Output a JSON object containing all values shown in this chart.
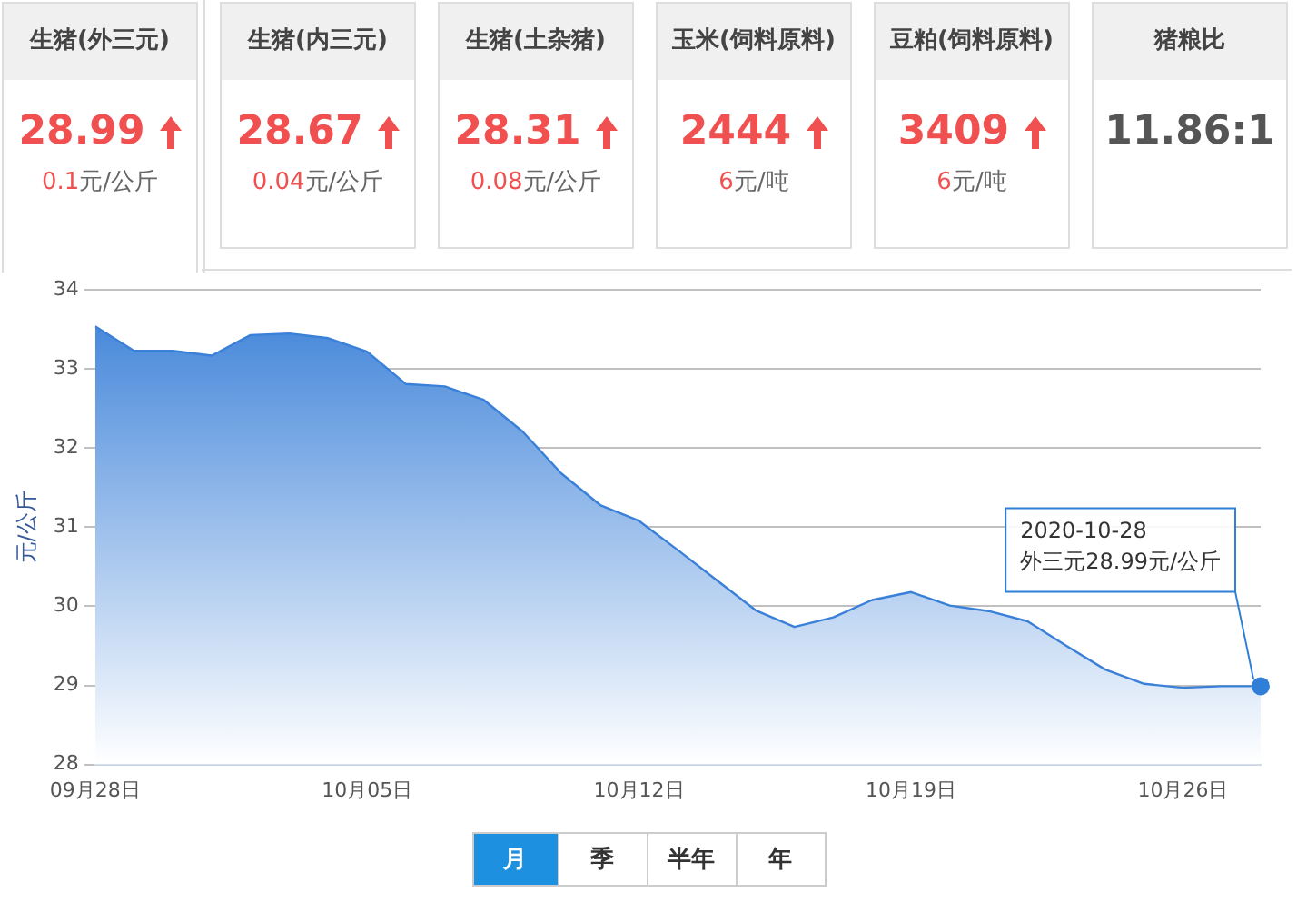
{
  "chart_data": [
    {
      "type": "other",
      "categories": [
        "生猪(外三元)",
        "生猪(内三元)",
        "生猪(土杂猪)",
        "玉米(饲料原料)",
        "豆粕(饲料原料)",
        "猪粮比"
      ],
      "value_labels": [
        "28.99",
        "28.67",
        "28.31",
        "2444",
        "3409",
        "11.86:1"
      ],
      "annotations": [
        "0.1元/公斤",
        "0.04元/公斤",
        "0.08元/公斤",
        "6元/吨",
        "6元/吨"
      ]
    },
    {
      "type": "area",
      "ylabel": "元/公斤",
      "x": [
        "2020-09-28",
        "2020-09-29",
        "2020-09-30",
        "2020-10-01",
        "2020-10-02",
        "2020-10-03",
        "2020-10-04",
        "2020-10-05",
        "2020-10-06",
        "2020-10-07",
        "2020-10-08",
        "2020-10-09",
        "2020-10-10",
        "2020-10-11",
        "2020-10-12",
        "2020-10-13",
        "2020-10-14",
        "2020-10-15",
        "2020-10-16",
        "2020-10-17",
        "2020-10-18",
        "2020-10-19",
        "2020-10-20",
        "2020-10-21",
        "2020-10-22",
        "2020-10-23",
        "2020-10-24",
        "2020-10-25",
        "2020-10-26",
        "2020-10-27",
        "2020-10-28"
      ],
      "series": [
        {
          "color": "#3a80d8",
          "values": [
            33.54,
            33.23,
            33.23,
            33.17,
            33.43,
            33.45,
            33.39,
            33.22,
            32.81,
            32.78,
            32.61,
            32.21,
            31.68,
            31.28,
            31.08,
            30.71,
            30.33,
            29.95,
            29.74,
            29.86,
            30.08,
            30.18,
            30.01,
            29.94,
            29.81,
            29.5,
            29.2,
            29.02,
            28.97,
            28.99,
            28.99
          ]
        }
      ],
      "xlim": [
        "2020-09-28",
        "2020-10-28"
      ],
      "xticks": [
        {
          "value": "2020-09-28",
          "label": "09月28日"
        },
        {
          "value": "2020-10-05",
          "label": "10月05日"
        },
        {
          "value": "2020-10-12",
          "label": "10月12日"
        },
        {
          "value": "2020-10-19",
          "label": "10月19日"
        },
        {
          "value": "2020-10-26",
          "label": "10月26日"
        }
      ],
      "ylim": [
        28,
        34
      ],
      "yticks": [
        28,
        29,
        30,
        31,
        32,
        33,
        34
      ],
      "grid": "y",
      "marker": "none",
      "line_style": "solid",
      "annotations": [
        {
          "text": "2020-10-28\n外三元28.99元/公斤",
          "x": "2020-10-28",
          "y": 28.99
        },
        "月",
        "季",
        "半年",
        "年"
      ]
    }
  ]
}
